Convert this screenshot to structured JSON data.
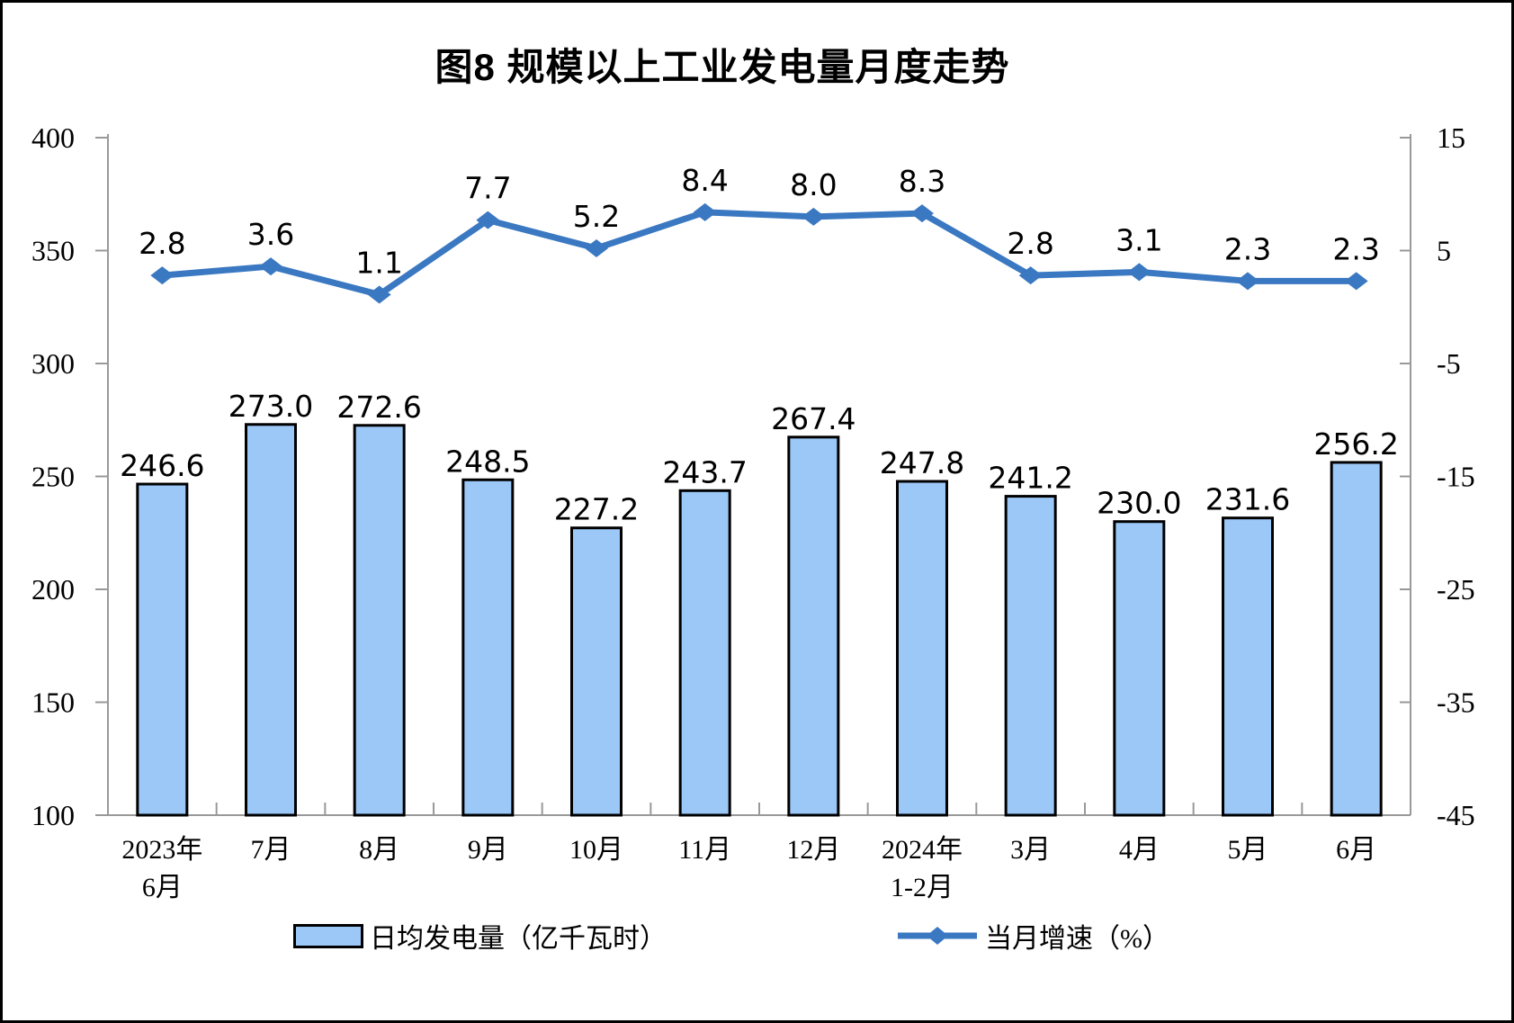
{
  "title": "图8 规模以上工业发电量月度走势",
  "colors": {
    "background": "#ffffff",
    "frame_border": "#000000",
    "bar_fill": "#9cc8f7",
    "bar_stroke": "#000000",
    "line": "#3a78c2",
    "axis": "#999999",
    "text": "#000000"
  },
  "legend": {
    "bar_label": "日均发电量（亿千瓦时）",
    "line_label": "当月增速（%）"
  },
  "chart_data": {
    "type": "bar+line combo",
    "title": "图8 规模以上工业发电量月度走势",
    "categories": [
      "2023年\n6月",
      "7月",
      "8月",
      "9月",
      "10月",
      "11月",
      "12月",
      "2024年\n1-2月",
      "3月",
      "4月",
      "5月",
      "6月"
    ],
    "series": [
      {
        "name": "日均发电量（亿千瓦时）",
        "type": "bar",
        "axis": "left",
        "values": [
          246.6,
          273.0,
          272.6,
          248.5,
          227.2,
          243.7,
          267.4,
          247.8,
          241.2,
          230.0,
          231.6,
          256.2
        ]
      },
      {
        "name": "当月增速（%）",
        "type": "line",
        "axis": "right",
        "values": [
          2.8,
          3.6,
          1.1,
          7.7,
          5.2,
          8.4,
          8.0,
          8.3,
          2.8,
          3.1,
          2.3,
          2.3
        ]
      }
    ],
    "left_axis": {
      "min": 100,
      "max": 400,
      "step": 50,
      "tick_labels": [
        "400",
        "350",
        "300",
        "250",
        "200",
        "150",
        "100"
      ]
    },
    "right_axis": {
      "min": -45,
      "max": 15,
      "step": 10,
      "tick_labels": [
        "15",
        "5",
        "-5",
        "-15",
        "-25",
        "-35",
        "-45"
      ]
    },
    "gridlines": false,
    "legend_position": "bottom",
    "data_labels": true
  }
}
